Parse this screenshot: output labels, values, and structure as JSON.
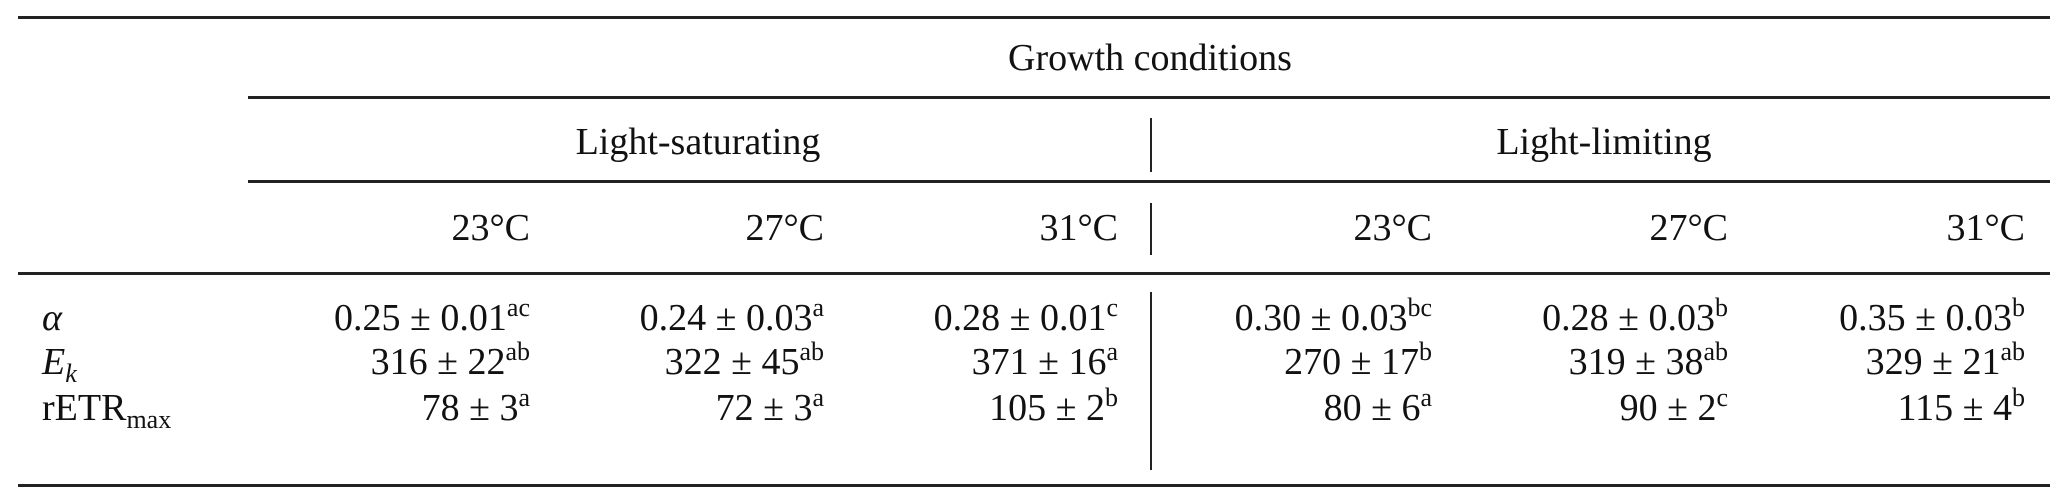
{
  "table": {
    "spanner": "Growth conditions",
    "groups": [
      {
        "label": "Light-saturating"
      },
      {
        "label": "Light-limiting"
      }
    ],
    "temps": [
      "23°C",
      "27°C",
      "31°C",
      "23°C",
      "27°C",
      "31°C"
    ],
    "pm": "±",
    "rows": [
      {
        "label": "α",
        "label_sub": "",
        "cells": [
          {
            "mean": "0.25",
            "sd": "0.01",
            "sup": "ac"
          },
          {
            "mean": "0.24",
            "sd": "0.03",
            "sup": "a"
          },
          {
            "mean": "0.28",
            "sd": "0.01",
            "sup": "c"
          },
          {
            "mean": "0.30",
            "sd": "0.03",
            "sup": "bc"
          },
          {
            "mean": "0.28",
            "sd": "0.03",
            "sup": "b"
          },
          {
            "mean": "0.35",
            "sd": "0.03",
            "sup": "b"
          }
        ]
      },
      {
        "label": "E",
        "label_sub": "k",
        "cells": [
          {
            "mean": "316",
            "sd": "22",
            "sup": "ab"
          },
          {
            "mean": "322",
            "sd": "45",
            "sup": "ab"
          },
          {
            "mean": "371",
            "sd": "16",
            "sup": "a"
          },
          {
            "mean": "270",
            "sd": "17",
            "sup": "b"
          },
          {
            "mean": "319",
            "sd": "38",
            "sup": "ab"
          },
          {
            "mean": "329",
            "sd": "21",
            "sup": "ab"
          }
        ]
      },
      {
        "label": "rETR",
        "label_sub": "max",
        "cells": [
          {
            "mean": "78",
            "sd": "3",
            "sup": "a"
          },
          {
            "mean": "72",
            "sd": "3",
            "sup": "a"
          },
          {
            "mean": "105",
            "sd": "2",
            "sup": "b"
          },
          {
            "mean": "80",
            "sd": "6",
            "sup": "a"
          },
          {
            "mean": "90",
            "sd": "2",
            "sup": "c"
          },
          {
            "mean": "115",
            "sd": "4",
            "sup": "b"
          }
        ]
      }
    ]
  }
}
